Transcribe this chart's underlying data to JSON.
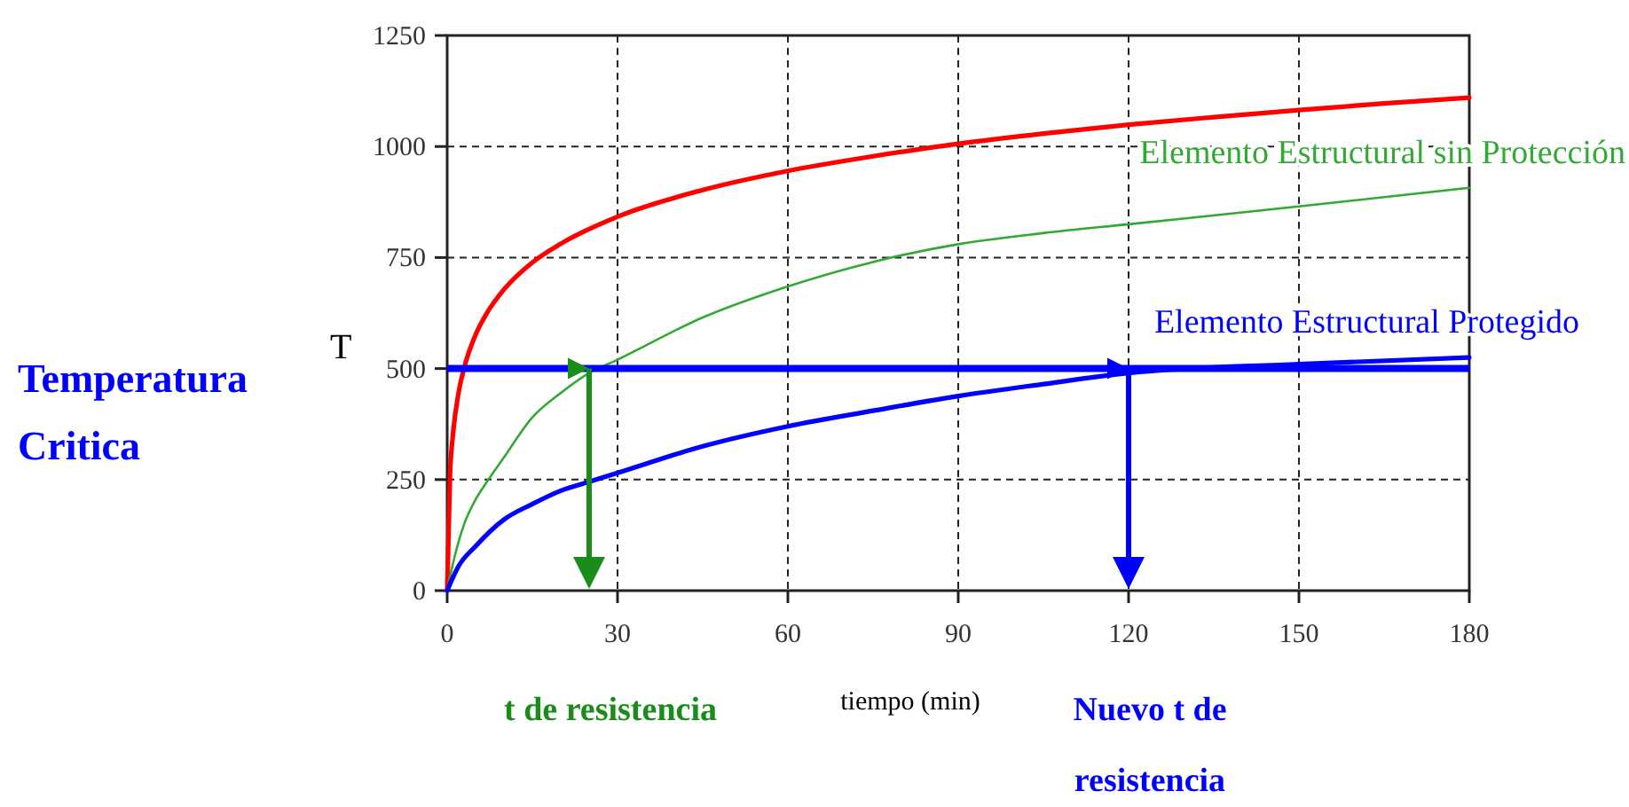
{
  "chart_data": {
    "type": "line",
    "xlabel": "tiempo (min)",
    "xlim": [
      0,
      180
    ],
    "xticks": [
      0,
      30,
      60,
      90,
      120,
      150,
      180
    ],
    "ylim": [
      0,
      1250
    ],
    "yticks": [
      0,
      250,
      500,
      750,
      1000,
      1250
    ],
    "grid": true,
    "marker": "none",
    "line_style": "solid",
    "series": [
      {
        "color": "#ff0000",
        "x": [
          0,
          0.5,
          1,
          2,
          3,
          5,
          7,
          10,
          15,
          20,
          30,
          45,
          60,
          75,
          90,
          105,
          120,
          135,
          150,
          165,
          180
        ],
        "values": [
          0,
          260,
          349,
          445,
          502,
          576,
          625,
          678,
          739,
          781,
          842,
          902,
          945,
          978,
          1006,
          1029,
          1049,
          1066,
          1082,
          1097,
          1110
        ]
      },
      {
        "name": "Elemento Estructural sin Protección",
        "color": "#33a833",
        "x": [
          0,
          1,
          3,
          5,
          7,
          10,
          15,
          20,
          25,
          30,
          45,
          60,
          75,
          90,
          105,
          120,
          150,
          180
        ],
        "values": [
          0,
          60,
          150,
          205,
          245,
          300,
          390,
          445,
          490,
          520,
          615,
          685,
          740,
          780,
          805,
          825,
          865,
          907
        ]
      },
      {
        "name": "Elemento Estructural Protegido",
        "color": "#0000ff",
        "x": [
          0,
          2,
          5,
          10,
          15,
          20,
          25,
          30,
          45,
          60,
          75,
          90,
          105,
          120,
          150,
          180
        ],
        "values": [
          0,
          55,
          100,
          160,
          195,
          225,
          245,
          265,
          325,
          370,
          405,
          438,
          465,
          490,
          510,
          525
        ]
      }
    ],
    "ref_lines": [
      {
        "axis": "y",
        "value": 500,
        "label": "Temperatura Critica",
        "color": "#0000ff"
      },
      {
        "axis": "x",
        "value": 25,
        "label": "t de resistencia",
        "color": "#1a8c1a"
      },
      {
        "axis": "x",
        "value": 120,
        "label": "Nuevo t de resistencia",
        "color": "#0000ff"
      }
    ],
    "annotations": [
      "T"
    ]
  }
}
